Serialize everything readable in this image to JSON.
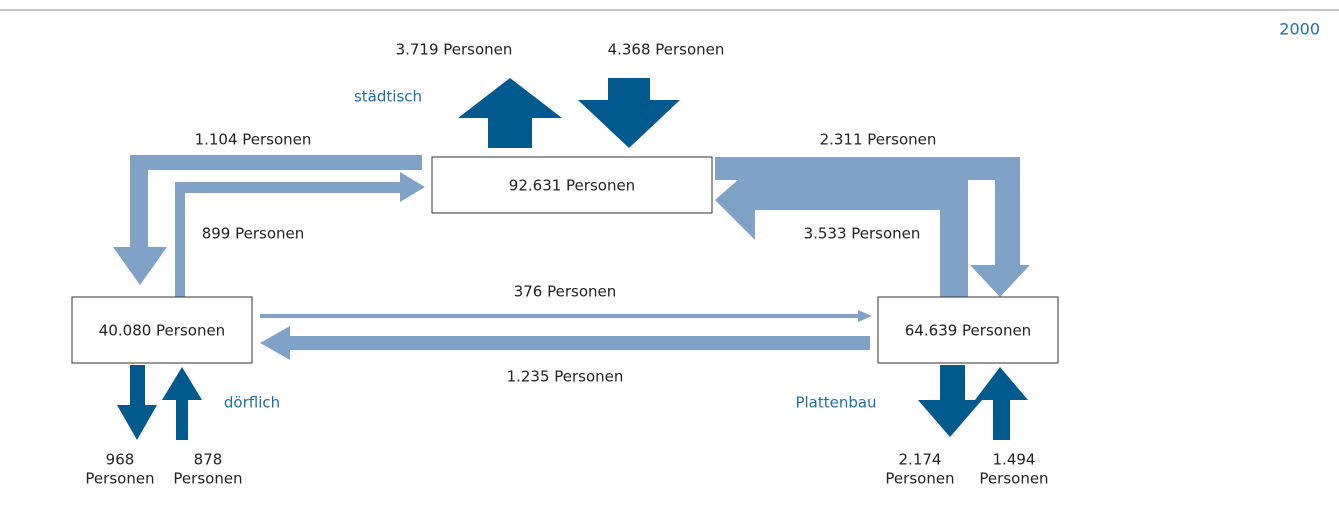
{
  "year": "2000",
  "regions": {
    "urban": "städtisch",
    "village": "dörflich",
    "prefab": "Plattenbau"
  },
  "nodes": [
    {
      "label": "92.631 Personen"
    },
    {
      "label": "40.080 Personen"
    },
    {
      "label": "64.639 Personen"
    }
  ],
  "flows": [
    {
      "label": [
        "3.719 Personen"
      ]
    },
    {
      "label": [
        "4.368 Personen"
      ]
    },
    {
      "label": [
        "1.104 Personen"
      ]
    },
    {
      "label": [
        "899 Personen"
      ]
    },
    {
      "label": [
        "2.311 Personen"
      ]
    },
    {
      "label": [
        "3.533 Personen"
      ]
    },
    {
      "label": [
        "376 Personen"
      ]
    },
    {
      "label": [
        "1.235 Personen"
      ]
    },
    {
      "label": [
        "968",
        "Personen"
      ]
    },
    {
      "label": [
        "878",
        "Personen"
      ]
    },
    {
      "label": [
        "2.174",
        "Personen"
      ]
    },
    {
      "label": [
        "1.494",
        "Personen"
      ]
    }
  ]
}
